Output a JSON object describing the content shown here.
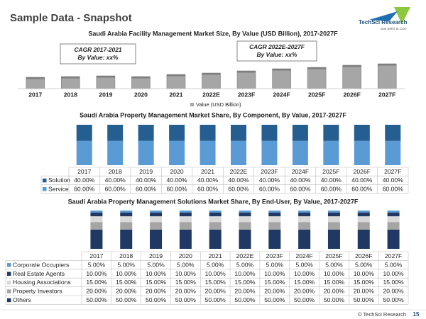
{
  "page": {
    "title": "Sample Data - Snapshot",
    "logo": "TechSci Research",
    "logo_tagline": "Just Sell it to CXO",
    "footer": "© TechSci Research",
    "page_number": "15"
  },
  "chart_data": [
    {
      "type": "bar",
      "title": "Saudi Arabia Facility Management Market Size, By Value (USD Billion), 2017-2027F",
      "categories": [
        "2017",
        "2018",
        "2019",
        "2020",
        "2021",
        "2022E",
        "2023F",
        "2024F",
        "2025F",
        "2026F",
        "2027F"
      ],
      "series": [
        {
          "name": "Value (USD Billion)",
          "color": "#a6a6a6",
          "values": [
            16,
            17,
            18,
            17,
            20,
            22,
            25,
            28,
            30,
            33,
            35
          ]
        }
      ],
      "ylim": [
        0,
        40
      ],
      "legend": "bottom",
      "annotations": [
        {
          "title": "CAGR 2017-2021",
          "text": "By Value: xx%"
        },
        {
          "title": "CAGR 2022E-2027F",
          "text": "By Value: xx%"
        }
      ]
    },
    {
      "type": "stacked_bar",
      "title": "Saudi Arabia Property Management Market Share, By Component, By Value, 2017-2027F",
      "categories": [
        "2017",
        "2018",
        "2019",
        "2020",
        "2021",
        "2022E",
        "2023F",
        "2024F",
        "2025F",
        "2026F",
        "2027F"
      ],
      "series": [
        {
          "name": "Solution",
          "color": "#255e91",
          "values": [
            40,
            40,
            40,
            40,
            40,
            40,
            40,
            40,
            40,
            40,
            40
          ],
          "value_labels": [
            "40.00%",
            "40.00%",
            "40.00%",
            "40.00%",
            "40.00%",
            "40.00%",
            "40.00%",
            "40.00%",
            "40.00%",
            "40.00%",
            "40.00%"
          ]
        },
        {
          "name": "Service",
          "color": "#5b9bd5",
          "values": [
            60,
            60,
            60,
            60,
            60,
            60,
            60,
            60,
            60,
            60,
            60
          ],
          "value_labels": [
            "60.00%",
            "60.00%",
            "60.00%",
            "60.00%",
            "60.00%",
            "60.00%",
            "60.00%",
            "60.00%",
            "60.00%",
            "60.00%",
            "60.00%"
          ]
        }
      ],
      "ylim": [
        0,
        100
      ],
      "data_table": true
    },
    {
      "type": "stacked_bar",
      "title": "Saudi Arabia Property Management Solutions Market Share, By End-User, By Value, 2017-2027F",
      "categories": [
        "2017",
        "2018",
        "2019",
        "2020",
        "2021",
        "2022E",
        "2023F",
        "2024F",
        "2025F",
        "2026F",
        "2027F"
      ],
      "series": [
        {
          "name": "Corporate Occupiers",
          "color": "#5b9bd5",
          "values": [
            5,
            5,
            5,
            5,
            5,
            5,
            5,
            5,
            5,
            5,
            5
          ],
          "value_labels": [
            "5.00%",
            "5.00%",
            "5.00%",
            "5.00%",
            "5.00%",
            "5.00%",
            "5.00%",
            "5.00%",
            "5.00%",
            "5.00%",
            "5.00%"
          ]
        },
        {
          "name": "Real Estate Agents",
          "color": "#1f3864",
          "values": [
            10,
            10,
            10,
            10,
            10,
            10,
            10,
            10,
            10,
            10,
            10
          ],
          "value_labels": [
            "10.00%",
            "10.00%",
            "10.00%",
            "10.00%",
            "10.00%",
            "10.00%",
            "10.00%",
            "10.00%",
            "10.00%",
            "10.00%",
            "10.00%"
          ]
        },
        {
          "name": "Housing Associations",
          "color": "#d9d9d9",
          "values": [
            15,
            15,
            15,
            15,
            15,
            15,
            15,
            15,
            15,
            15,
            15
          ],
          "value_labels": [
            "15.00%",
            "15.00%",
            "15.00%",
            "15.00%",
            "15.00%",
            "15.00%",
            "15.00%",
            "15.00%",
            "15.00%",
            "15.00%",
            "15.00%"
          ]
        },
        {
          "name": "Property Investors",
          "color": "#a5a5a5",
          "values": [
            20,
            20,
            20,
            20,
            20,
            20,
            20,
            20,
            20,
            20,
            20
          ],
          "value_labels": [
            "20.00%",
            "20.00%",
            "20.00%",
            "20.00%",
            "20.00%",
            "20.00%",
            "20.00%",
            "20.00%",
            "20.00%",
            "20.00%",
            "20.00%"
          ]
        },
        {
          "name": "Others",
          "color": "#203864",
          "values": [
            50,
            50,
            50,
            50,
            50,
            50,
            50,
            50,
            50,
            50,
            50
          ],
          "value_labels": [
            "50.00%",
            "50.00%",
            "50.00%",
            "50.00%",
            "50.00%",
            "50.00%",
            "50.00%",
            "50.00%",
            "50.00%",
            "50.00%",
            "50.00%"
          ]
        }
      ],
      "ylim": [
        0,
        100
      ],
      "data_table": true
    }
  ]
}
